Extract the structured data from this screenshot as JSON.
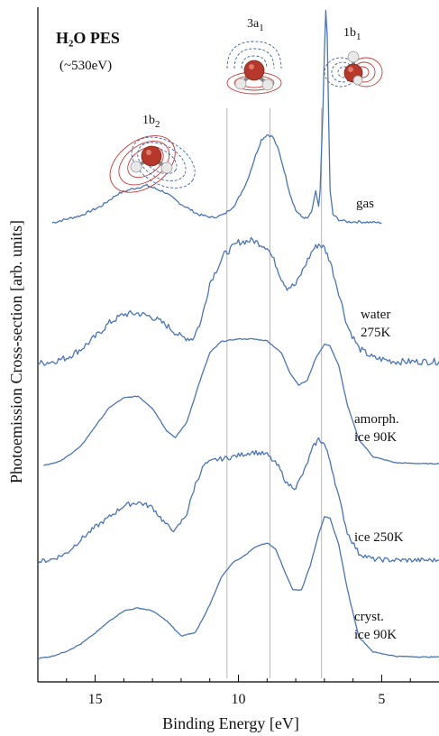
{
  "chart_data": {
    "type": "line",
    "title": "H₂O PES",
    "subtitle": "(~530eV)",
    "xlabel": "Binding Energy [eV]",
    "ylabel": "Photoemission Cross-section  [arb. units]",
    "x_reversed": true,
    "xlim": [
      17,
      3
    ],
    "x_ticks": [
      15,
      10,
      5
    ],
    "y_ticks": false,
    "grid": false,
    "reference_lines_eV": [
      10.4,
      8.9,
      7.1
    ],
    "annotations": [
      {
        "text": "1b₂",
        "x": 13.3
      },
      {
        "text": "3a₁",
        "x": 9.1
      },
      {
        "text": "1b₁",
        "x": 6.2
      }
    ],
    "series": [
      {
        "name": "gas",
        "x": [
          16.5,
          15.5,
          14.8,
          14.2,
          13.8,
          13.2,
          12.6,
          12.0,
          11.4,
          10.9,
          10.5,
          10.1,
          9.7,
          9.4,
          9.2,
          9.0,
          8.8,
          8.6,
          8.4,
          8.2,
          8.0,
          7.8,
          7.6,
          7.45,
          7.3,
          7.2,
          7.15,
          7.05,
          7.0,
          6.95,
          6.9,
          6.85,
          6.8,
          6.7,
          6.5,
          6.2,
          5.8,
          5.0
        ],
        "y": [
          0,
          0.7,
          1.6,
          2.8,
          3.2,
          3.6,
          3.0,
          1.8,
          0.8,
          0.5,
          0.8,
          1.8,
          4.0,
          6.5,
          8.0,
          8.5,
          8.3,
          7.0,
          5.0,
          2.8,
          1.2,
          0.6,
          0.4,
          1.0,
          3.0,
          1.6,
          3.0,
          11.0,
          16.5,
          20.5,
          18.0,
          10.0,
          3.0,
          0.8,
          0.3,
          0.1,
          0.1,
          0.0
        ]
      },
      {
        "name": "water\n275K",
        "x": [
          17.0,
          16.5,
          16.0,
          15.5,
          15.0,
          14.5,
          14.0,
          13.5,
          13.0,
          12.5,
          12.0,
          11.6,
          11.3,
          11.0,
          10.5,
          10.0,
          9.5,
          9.0,
          8.7,
          8.5,
          8.3,
          8.0,
          7.7,
          7.4,
          7.2,
          7.0,
          6.8,
          6.5,
          6.2,
          5.8,
          5.3,
          4.5,
          3.5,
          3.0
        ],
        "y": [
          0,
          0.2,
          0.6,
          1.5,
          2.8,
          4.3,
          5.2,
          5.3,
          4.9,
          4.0,
          2.8,
          2.6,
          4.5,
          8.5,
          11.5,
          12.8,
          13.0,
          12.3,
          10.5,
          9.0,
          8.0,
          8.3,
          10.2,
          12.0,
          12.6,
          12.2,
          10.8,
          7.5,
          4.0,
          1.6,
          0.6,
          0.2,
          0.2,
          0.2
        ]
      },
      {
        "name": "amorph.\nice 90K",
        "x": [
          16.8,
          16.2,
          15.5,
          15.0,
          14.5,
          14.0,
          13.5,
          13.0,
          12.5,
          12.2,
          11.8,
          11.4,
          11.0,
          10.6,
          10.0,
          9.5,
          9.0,
          8.5,
          8.2,
          7.9,
          7.6,
          7.3,
          7.0,
          6.8,
          6.5,
          6.2,
          5.8,
          5.3,
          4.5,
          3.5,
          3.0
        ],
        "y": [
          0,
          0.5,
          2.2,
          4.5,
          6.7,
          7.8,
          8.0,
          6.6,
          4.0,
          3.2,
          5.0,
          9.2,
          13.0,
          14.3,
          14.6,
          14.6,
          14.4,
          13.0,
          10.7,
          9.3,
          9.8,
          12.4,
          14.0,
          13.8,
          11.5,
          7.0,
          3.0,
          1.0,
          0.3,
          0.2,
          0.2
        ]
      },
      {
        "name": "ice 250K",
        "x": [
          17.0,
          16.5,
          16.0,
          15.5,
          15.0,
          14.5,
          14.0,
          13.5,
          13.0,
          12.5,
          12.2,
          11.8,
          11.5,
          11.2,
          10.8,
          10.4,
          10.0,
          9.5,
          9.0,
          8.6,
          8.3,
          8.0,
          7.7,
          7.4,
          7.2,
          7.0,
          6.8,
          6.5,
          6.2,
          5.8,
          5.3,
          4.5,
          3.5,
          3.0
        ],
        "y": [
          0,
          0.3,
          1.0,
          2.6,
          4.0,
          5.2,
          6.5,
          6.9,
          6.3,
          4.2,
          3.6,
          5.6,
          9.0,
          11.2,
          11.8,
          12.0,
          12.3,
          12.7,
          12.4,
          11.0,
          9.0,
          8.6,
          10.5,
          13.2,
          14.2,
          13.6,
          11.7,
          7.5,
          3.4,
          1.0,
          0.3,
          0.2,
          0.2,
          0.2
        ]
      },
      {
        "name": "cryst.\nice 90K",
        "x": [
          17.0,
          16.5,
          16.0,
          15.5,
          15.0,
          14.5,
          14.0,
          13.5,
          13.0,
          12.5,
          12.0,
          11.5,
          11.0,
          10.6,
          10.2,
          9.8,
          9.4,
          9.0,
          8.7,
          8.4,
          8.1,
          7.8,
          7.5,
          7.2,
          7.0,
          6.8,
          6.5,
          6.2,
          5.8,
          5.3,
          4.5,
          3.5,
          3.0
        ],
        "y": [
          0,
          0.3,
          1.0,
          2.0,
          3.5,
          5.2,
          6.6,
          7.0,
          6.6,
          5.2,
          3.1,
          3.6,
          7.4,
          11.2,
          13.3,
          14.2,
          15.5,
          16.0,
          15.2,
          12.2,
          9.5,
          9.5,
          12.8,
          17.3,
          19.6,
          19.4,
          15.8,
          9.6,
          3.0,
          0.9,
          0.3,
          0.2,
          0.2
        ]
      }
    ],
    "colors": {
      "trace": "#4a74b6",
      "reference_line": "#b8b8b8",
      "axis": "#000000",
      "oxygen": "#b5382a",
      "hydrogen": "#e8e8e8",
      "contour_positive": "#c43a3a",
      "contour_negative": "#3d5fa8"
    }
  }
}
